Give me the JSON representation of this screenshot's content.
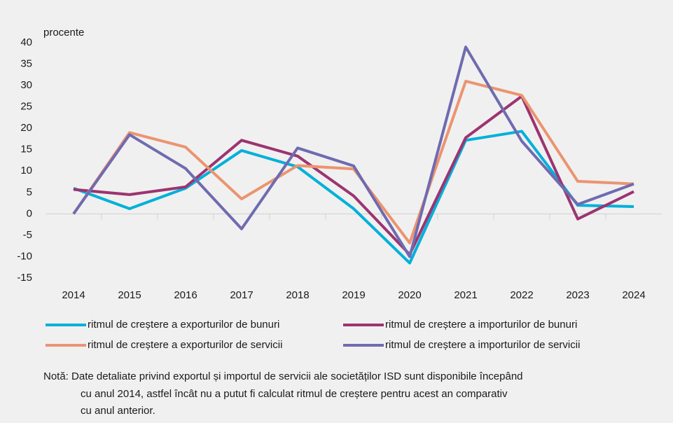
{
  "chart_data": {
    "type": "line",
    "y_label": "procente",
    "categories": [
      "2014",
      "2015",
      "2016",
      "2017",
      "2018",
      "2019",
      "2020",
      "2021",
      "2022",
      "2023",
      "2024"
    ],
    "series": [
      {
        "name": "ritmul de creștere a exporturilor de bunuri",
        "color": "#00b0da",
        "values": [
          6,
          1.2,
          6,
          14.8,
          11,
          1.2,
          -11.5,
          17.2,
          19.3,
          2,
          1.7
        ]
      },
      {
        "name": "ritmul de creștere a importurilor de bunuri",
        "color": "#9c3470",
        "values": [
          5.7,
          4.5,
          6.3,
          17.2,
          13.5,
          4.2,
          -9.5,
          17.8,
          27.5,
          -1.2,
          5.2
        ]
      },
      {
        "name": "ritmul de creștere a exporturilor de servicii",
        "color": "#eb9470",
        "values": [
          0,
          19,
          15.6,
          3.5,
          11.3,
          10.5,
          -6.8,
          31,
          27.7,
          7.6,
          7
        ]
      },
      {
        "name": "ritmul de creștere a importurilor de servicii",
        "color": "#6f6bb0",
        "values": [
          0,
          18.5,
          10.6,
          -3.5,
          15.4,
          11.2,
          -10,
          39,
          17,
          2.2,
          7
        ]
      }
    ],
    "ylim": [
      -15,
      40
    ],
    "yticks": [
      -15,
      -10,
      -5,
      0,
      5,
      10,
      15,
      20,
      25,
      30,
      35,
      40
    ],
    "grid": false,
    "note": [
      "Notă: Date detaliate privind exportul și importul de servicii ale societăților ISD sunt disponibile începând",
      "cu anul 2014, astfel încât nu a putut fi calculat ritmul de creștere pentru acest an comparativ",
      "cu anul anterior."
    ]
  }
}
